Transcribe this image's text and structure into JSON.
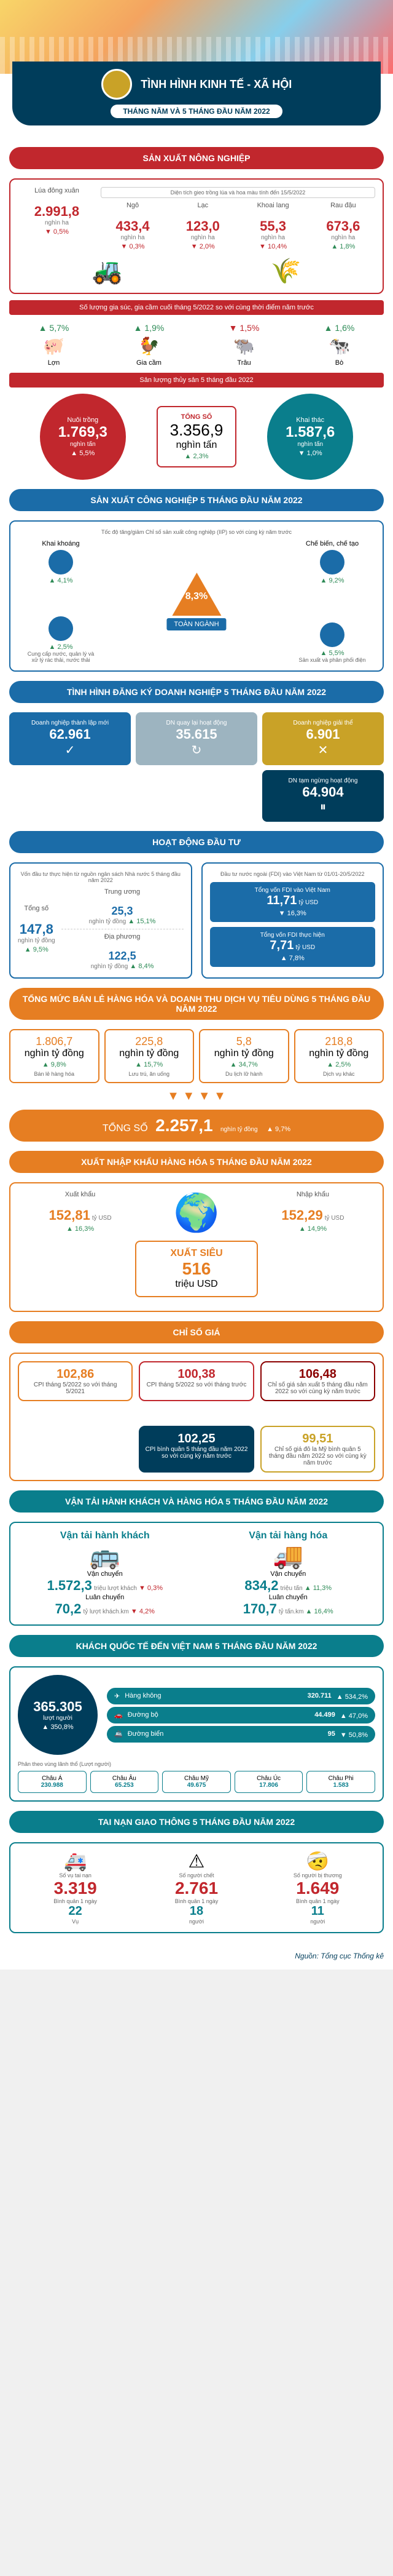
{
  "colors": {
    "navy": "#003d5b",
    "red": "#c1272d",
    "blue": "#1b6ca8",
    "teal": "#0a7e8c",
    "orange": "#e67e22",
    "green": "#2e8b57",
    "gold": "#c9a227"
  },
  "title": "TÌNH HÌNH KINH TẾ - XÃ HỘI",
  "subtitle": "THÁNG NĂM VÀ 5 THÁNG ĐẦU NĂM 2022",
  "agri": {
    "header": "SẢN XUẤT NÔNG NGHIỆP",
    "rice": {
      "label": "Lúa đông xuân",
      "val": "2.991,8",
      "unit": "nghìn ha",
      "delta": "0,5%",
      "dir": "down"
    },
    "crops_label": "Diện tích gieo trồng lúa và hoa màu tính đến 15/5/2022",
    "crops": [
      {
        "label": "Ngô",
        "val": "433,4",
        "unit": "nghìn ha",
        "delta": "0,3%",
        "dir": "down"
      },
      {
        "label": "Lạc",
        "val": "123,0",
        "unit": "nghìn ha",
        "delta": "2,0%",
        "dir": "down"
      },
      {
        "label": "Khoai lang",
        "val": "55,3",
        "unit": "nghìn ha",
        "delta": "10,4%",
        "dir": "down"
      },
      {
        "label": "Rau đậu",
        "val": "673,6",
        "unit": "nghìn ha",
        "delta": "1,8%",
        "dir": "up"
      }
    ],
    "livestock_label": "Số lượng gia súc, gia cầm cuối tháng 5/2022 so với cùng thời điểm năm trước",
    "livestock": [
      {
        "label": "Lợn",
        "delta": "5,7%",
        "dir": "up",
        "icon": "🐖"
      },
      {
        "label": "Gia cầm",
        "delta": "1,9%",
        "dir": "up",
        "icon": "🐓"
      },
      {
        "label": "Trâu",
        "delta": "1,5%",
        "dir": "down",
        "icon": "🐃"
      },
      {
        "label": "Bò",
        "delta": "1,6%",
        "dir": "up",
        "icon": "🐄"
      }
    ],
    "fish_label": "Sản lượng thủy sản 5 tháng đầu 2022",
    "fish": {
      "farm": {
        "label": "Nuôi trồng",
        "val": "1.769,3",
        "unit": "nghìn tấn",
        "delta": "5,5%",
        "dir": "up",
        "color": "#c1272d"
      },
      "total": {
        "label": "TỔNG SỐ",
        "val": "3.356,9",
        "unit": "nghìn tấn",
        "delta": "2,3%",
        "dir": "up"
      },
      "catch": {
        "label": "Khai thác",
        "val": "1.587,6",
        "unit": "nghìn tấn",
        "delta": "1,0%",
        "dir": "down",
        "color": "#0a7e8c"
      }
    }
  },
  "industry": {
    "header": "SẢN XUẤT CÔNG NGHIỆP 5 THÁNG ĐẦU NĂM 2022",
    "sub": "Tốc độ tăng/giảm Chỉ số sản xuất công nghiệp (IIP) so với cùng kỳ năm trước",
    "center": {
      "label": "TOÀN NGÀNH",
      "val": "8,3%",
      "dir": "up"
    },
    "corners": [
      {
        "label": "Khai khoáng",
        "delta": "4,1%",
        "dir": "up",
        "pos": "tl"
      },
      {
        "label": "Chế biến, chế tạo",
        "delta": "9,2%",
        "dir": "up",
        "pos": "tr"
      },
      {
        "label": "Cung cấp nước, quản lý và xử lý rác thải, nước thải",
        "delta": "2,5%",
        "dir": "up",
        "pos": "bl"
      },
      {
        "label": "Sản xuất và phân phối điện",
        "delta": "5,5%",
        "dir": "up",
        "pos": "br"
      }
    ]
  },
  "biz": {
    "header": "TÌNH HÌNH ĐĂNG KÝ DOANH NGHIỆP 5 THÁNG ĐẦU NĂM 2022",
    "row1": [
      {
        "label": "Doanh nghiệp thành lập mới",
        "val": "62.961",
        "color": "#1b6ca8",
        "icon": "✓"
      },
      {
        "label": "DN quay lại hoạt động",
        "val": "35.615",
        "color": "#9db4c0",
        "icon": "↻"
      },
      {
        "label": "Doanh nghiệp giải thể",
        "val": "6.901",
        "color": "#c9a227",
        "icon": "✕"
      }
    ],
    "row2": [
      {
        "label": "DN tạm ngừng hoạt động",
        "val": "64.904",
        "color": "#003d5b",
        "icon": "⏸"
      }
    ]
  },
  "invest": {
    "header": "HOẠT ĐỘNG ĐẦU TƯ",
    "left_label": "Vốn đầu tư thực hiện từ nguồn ngân sách Nhà nước 5 tháng đầu năm 2022",
    "total": {
      "label": "Tổng số",
      "val": "147,8",
      "unit": "nghìn tỷ đồng",
      "delta": "9,5%",
      "dir": "up"
    },
    "parts": [
      {
        "label": "Trung ương",
        "val": "25,3",
        "unit": "nghìn tỷ đồng",
        "delta": "15,1%",
        "dir": "up"
      },
      {
        "label": "Địa phương",
        "val": "122,5",
        "unit": "nghìn tỷ đồng",
        "delta": "8,4%",
        "dir": "up"
      }
    ],
    "right_label": "Đầu tư nước ngoài (FDI) vào Việt Nam từ 01/01-20/5/2022",
    "fdi": [
      {
        "label": "Tổng vốn FDI vào Việt Nam",
        "val": "11,71",
        "unit": "tỷ USD",
        "delta": "16,3%",
        "dir": "down"
      },
      {
        "label": "Tổng vốn FDI thực hiện",
        "val": "7,71",
        "unit": "tỷ USD",
        "delta": "7,8%",
        "dir": "up"
      }
    ]
  },
  "retail": {
    "header": "TỔNG MỨC BÁN LẺ HÀNG HÓA VÀ DOANH THU DỊCH VỤ TIÊU DÙNG 5 THÁNG ĐẦU NĂM 2022",
    "items": [
      {
        "val": "1.806,7",
        "unit": "nghìn tỷ đồng",
        "delta": "9,8%",
        "dir": "up",
        "label": "Bán lẻ hàng hóa"
      },
      {
        "val": "225,8",
        "unit": "nghìn tỷ đồng",
        "delta": "15,7%",
        "dir": "up",
        "label": "Lưu trú, ăn uống"
      },
      {
        "val": "5,8",
        "unit": "nghìn tỷ đồng",
        "delta": "34,7%",
        "dir": "up",
        "label": "Du lịch lữ hành"
      },
      {
        "val": "218,8",
        "unit": "nghìn tỷ đồng",
        "delta": "2,5%",
        "dir": "up",
        "label": "Dịch vụ khác"
      }
    ],
    "total": {
      "label": "TỔNG SỐ",
      "val": "2.257,1",
      "unit": "nghìn tỷ đồng",
      "delta": "9,7%",
      "dir": "up"
    }
  },
  "trade": {
    "header": "XUẤT NHẬP KHẨU HÀNG HÓA 5 THÁNG ĐẦU NĂM 2022",
    "export": {
      "label": "Xuất khẩu",
      "val": "152,81",
      "unit": "tỷ USD",
      "delta": "16,3%",
      "dir": "up"
    },
    "import": {
      "label": "Nhập khẩu",
      "val": "152,29",
      "unit": "tỷ USD",
      "delta": "14,9%",
      "dir": "up"
    },
    "surplus": {
      "label": "XUẤT SIÊU",
      "val": "516",
      "unit": "triệu USD"
    }
  },
  "cpi": {
    "header": "CHỈ SỐ GIÁ",
    "items": [
      {
        "n": "102,86",
        "label": "CPI tháng 5/2022 so với tháng 5/2021",
        "color": "#e67e22"
      },
      {
        "n": "100,38",
        "label": "CPI tháng 5/2022 so với tháng trước",
        "color": "#c1272d"
      },
      {
        "n": "106,48",
        "label": "Chỉ số giá sản xuất 5 tháng đầu năm 2022 so với cùng kỳ năm trước",
        "color": "#8b0000"
      },
      {
        "n": "",
        "label": "",
        "color": "transparent"
      },
      {
        "n": "102,25",
        "label": "CPI bình quân 5 tháng đầu năm 2022 so với cùng kỳ năm trước",
        "color": "#003d5b",
        "inv": true
      },
      {
        "n": "99,51",
        "label": "Chỉ số giá đô la Mỹ bình quân 5 tháng đầu năm 2022 so với cùng kỳ năm trước",
        "color": "#c9a227"
      }
    ]
  },
  "transport": {
    "header": "VẬN TẢI HÀNH KHÁCH VÀ HÀNG HÓA 5 THÁNG ĐẦU NĂM 2022",
    "pax": {
      "title": "Vận tải hành khách",
      "icon": "🚌",
      "a": {
        "label": "Vận chuyển",
        "val": "1.572,3",
        "unit": "triệu lượt khách",
        "delta": "0,3%",
        "dir": "down"
      },
      "b": {
        "label": "Luân chuyển",
        "val": "70,2",
        "unit": "tỷ lượt khách.km",
        "delta": "4,2%",
        "dir": "down"
      }
    },
    "cargo": {
      "title": "Vận tải hàng hóa",
      "icon": "🚚",
      "a": {
        "label": "Vận chuyển",
        "val": "834,2",
        "unit": "triệu tấn",
        "delta": "11,3%",
        "dir": "up"
      },
      "b": {
        "label": "Luân chuyển",
        "val": "170,7",
        "unit": "tỷ tấn.km",
        "delta": "16,4%",
        "dir": "up"
      }
    }
  },
  "tourist": {
    "header": "KHÁCH QUỐC TẾ ĐẾN VIỆT NAM 5 THÁNG ĐẦU NĂM 2022",
    "total": {
      "val": "365.305",
      "unit": "lượt người",
      "delta": "350,8%",
      "dir": "up"
    },
    "modes": [
      {
        "icon": "✈",
        "label": "Hàng không",
        "val": "320.711",
        "delta": "534,2%",
        "dir": "up"
      },
      {
        "icon": "🚗",
        "label": "Đường bộ",
        "val": "44.499",
        "delta": "47,0%",
        "dir": "up"
      },
      {
        "icon": "🚢",
        "label": "Đường biển",
        "val": "95",
        "delta": "50,8%",
        "dir": "down"
      }
    ],
    "cont_label": "Phân theo vùng lãnh thổ (Lượt người)",
    "continents": [
      {
        "label": "Châu Á",
        "val": "230.988"
      },
      {
        "label": "Châu Âu",
        "val": "65.253"
      },
      {
        "label": "Châu Mỹ",
        "val": "49.675"
      },
      {
        "label": "Châu Úc",
        "val": "17.806"
      },
      {
        "label": "Châu Phi",
        "val": "1.583"
      }
    ]
  },
  "accident": {
    "header": "TAI NẠN GIAO THÔNG 5 THÁNG ĐẦU NĂM 2022",
    "items": [
      {
        "icon": "🚑",
        "label": "Số vụ tai nạn",
        "val": "3.319",
        "sub": "Bình quân 1 ngày",
        "sv": "22",
        "su": "Vụ"
      },
      {
        "icon": "⚠",
        "label": "Số người chết",
        "val": "2.761",
        "sub": "Bình quân 1 ngày",
        "sv": "18",
        "su": "người"
      },
      {
        "icon": "🤕",
        "label": "Số người bị thương",
        "val": "1.649",
        "sub": "Bình quân 1 ngày",
        "sv": "11",
        "su": "người"
      }
    ]
  },
  "footer": "Nguồn: Tổng cục Thống kê"
}
